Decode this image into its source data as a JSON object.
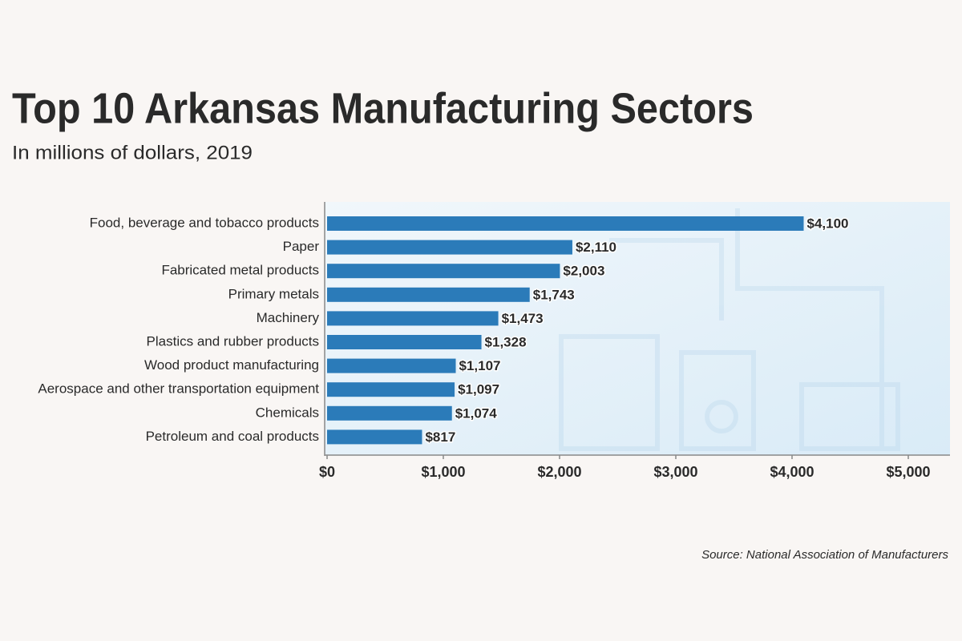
{
  "chart_data": {
    "type": "bar",
    "orientation": "horizontal",
    "title": "Top 10 Arkansas Manufacturing Sectors",
    "subtitle": "In millions of dollars, 2019",
    "source": "Source: National Association of Manufacturers",
    "categories": [
      "Food, beverage and tobacco products",
      "Paper",
      "Fabricated metal products",
      "Primary metals",
      "Machinery",
      "Plastics and rubber products",
      "Wood product manufacturing",
      "Aerospace and other transportation equipment",
      "Chemicals",
      "Petroleum and coal products"
    ],
    "values": [
      4100,
      2110,
      2003,
      1743,
      1473,
      1328,
      1107,
      1097,
      1074,
      817
    ],
    "value_labels": [
      "$4,100",
      "$2,110",
      "$2,003",
      "$1,743",
      "$1,473",
      "$1,328",
      "$1,107",
      "$1,097",
      "$1,074",
      "$817"
    ],
    "color": "#2b7bb9",
    "xlim": [
      0,
      5350
    ],
    "xticks": [
      {
        "value": 0,
        "label": "$0"
      },
      {
        "value": 1000,
        "label": "$1,000"
      },
      {
        "value": 2000,
        "label": "$2,000"
      },
      {
        "value": 3000,
        "label": "$3,000"
      },
      {
        "value": 4000,
        "label": "$4,000"
      },
      {
        "value": 5000,
        "label": "$5,000"
      }
    ],
    "grid": false
  }
}
